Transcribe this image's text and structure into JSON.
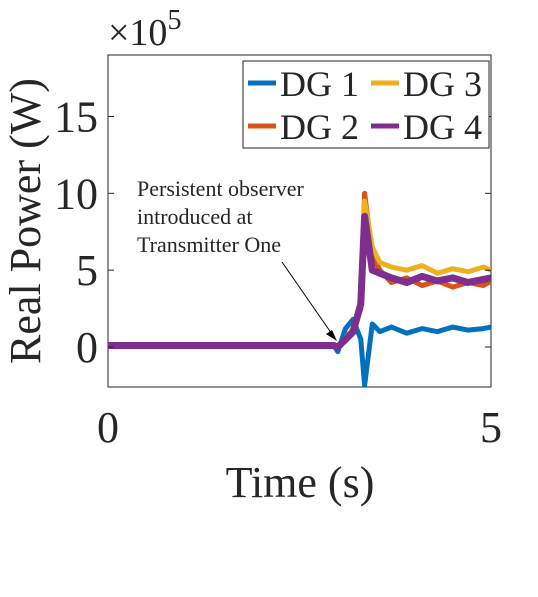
{
  "chart_data": {
    "type": "line",
    "xlabel": "Time (s)",
    "ylabel": "Real Power (W)",
    "exponent_label": "×10",
    "exponent_power": "5",
    "scale_factor": 100000,
    "xlim": [
      0,
      5
    ],
    "ylim": [
      -2.6,
      19
    ],
    "x_ticks": [
      0,
      5
    ],
    "x_tick_labels": [
      "0",
      "5"
    ],
    "y_ticks": [
      0,
      5,
      10,
      15
    ],
    "y_tick_labels": [
      "0",
      "5",
      "10",
      "15"
    ],
    "grid": false,
    "legend_position": "top-right",
    "annotation": {
      "lines": [
        "Persistent observer",
        "introduced at",
        "Transmitter One"
      ],
      "points_to": {
        "x": 3.0,
        "y": 0.3
      }
    },
    "series": [
      {
        "name": "DG 1",
        "color": "#0072BD",
        "x": [
          0,
          1,
          2,
          2.95,
          3.0,
          3.1,
          3.2,
          3.3,
          3.35,
          3.45,
          3.55,
          3.7,
          3.9,
          4.1,
          4.3,
          4.5,
          4.7,
          4.9,
          5.0
        ],
        "y": [
          0.1,
          0.1,
          0.1,
          0.1,
          -0.3,
          1.2,
          1.8,
          0.5,
          -2.5,
          1.5,
          1.0,
          1.3,
          0.9,
          1.2,
          1.0,
          1.3,
          1.1,
          1.2,
          1.3
        ]
      },
      {
        "name": "DG 2",
        "color": "#D95319",
        "x": [
          0,
          1,
          2,
          2.95,
          3.0,
          3.1,
          3.2,
          3.3,
          3.35,
          3.45,
          3.55,
          3.7,
          3.9,
          4.1,
          4.3,
          4.5,
          4.7,
          4.9,
          5.0
        ],
        "y": [
          0.1,
          0.1,
          0.1,
          0.1,
          0.0,
          0.4,
          0.9,
          2.5,
          10.0,
          6.0,
          5.0,
          4.2,
          4.5,
          4.0,
          4.3,
          3.9,
          4.2,
          4.0,
          4.3
        ]
      },
      {
        "name": "DG 3",
        "color": "#EDB120",
        "x": [
          0,
          1,
          2,
          2.95,
          3.0,
          3.1,
          3.2,
          3.3,
          3.35,
          3.45,
          3.55,
          3.7,
          3.9,
          4.1,
          4.3,
          4.5,
          4.7,
          4.9,
          5.0
        ],
        "y": [
          0.1,
          0.1,
          0.1,
          0.1,
          0.0,
          0.6,
          1.2,
          3.0,
          9.5,
          6.5,
          5.5,
          5.2,
          5.0,
          5.3,
          4.8,
          5.1,
          4.9,
          5.2,
          5.0
        ]
      },
      {
        "name": "DG 4",
        "color": "#7E2F8E",
        "x": [
          0,
          1,
          2,
          2.95,
          3.0,
          3.1,
          3.2,
          3.3,
          3.35,
          3.45,
          3.55,
          3.7,
          3.9,
          4.1,
          4.3,
          4.5,
          4.7,
          4.9,
          5.0
        ],
        "y": [
          0.1,
          0.1,
          0.1,
          0.1,
          0.0,
          0.5,
          1.0,
          2.8,
          8.5,
          5.0,
          4.8,
          4.5,
          4.2,
          4.6,
          4.3,
          4.5,
          4.2,
          4.4,
          4.5
        ]
      }
    ]
  }
}
